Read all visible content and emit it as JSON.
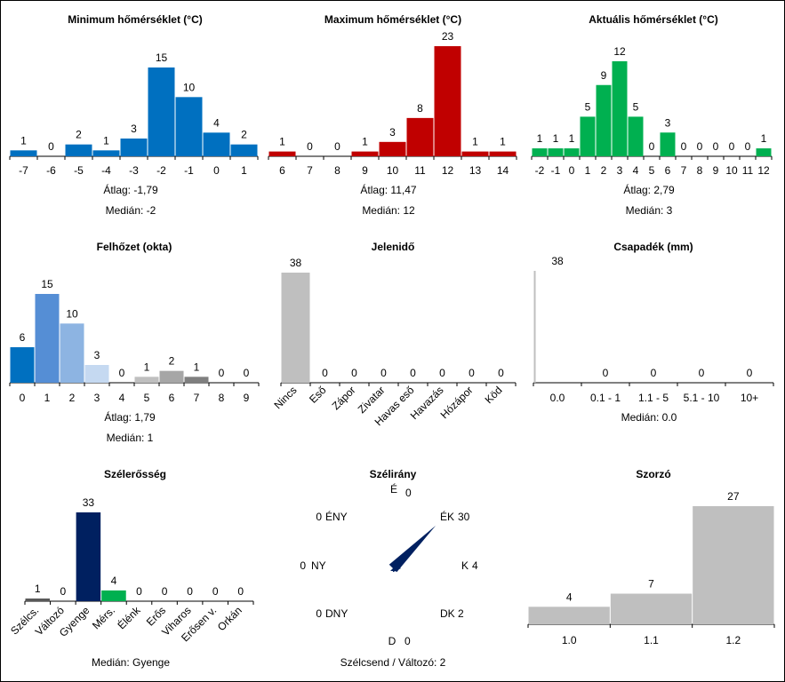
{
  "chart_data": [
    {
      "id": "min-temp",
      "type": "bar",
      "title": "Minimum hőmérséklet (°C)",
      "categories": [
        "-7",
        "-6",
        "-5",
        "-4",
        "-3",
        "-2",
        "-1",
        "0",
        "1"
      ],
      "values": [
        1,
        0,
        2,
        1,
        3,
        15,
        10,
        4,
        2
      ],
      "colors": [
        "#0070C0"
      ],
      "ylim": [
        0,
        15
      ],
      "stats": {
        "mean_label": "Átlag:",
        "mean": "-1,79",
        "median_label": "Medián:",
        "median": "-2"
      }
    },
    {
      "id": "max-temp",
      "type": "bar",
      "title": "Maximum hőmérséklet (°C)",
      "categories": [
        "6",
        "7",
        "8",
        "9",
        "10",
        "11",
        "12",
        "13",
        "14"
      ],
      "values": [
        1,
        0,
        0,
        1,
        3,
        8,
        23,
        1,
        1
      ],
      "colors": [
        "#C00000"
      ],
      "ylim": [
        0,
        23
      ],
      "stats": {
        "mean_label": "Átlag:",
        "mean": "11,47",
        "median_label": "Medián:",
        "median": "12"
      }
    },
    {
      "id": "act-temp",
      "type": "bar",
      "title": "Aktuális hőmérséklet (°C)",
      "categories": [
        "-2",
        "-1",
        "0",
        "1",
        "2",
        "3",
        "4",
        "5",
        "6",
        "7",
        "8",
        "9",
        "10",
        "11",
        "12"
      ],
      "values": [
        1,
        1,
        1,
        5,
        9,
        12,
        5,
        0,
        3,
        0,
        0,
        0,
        0,
        0,
        1
      ],
      "colors": [
        "#00B050"
      ],
      "ylim": [
        0,
        12
      ],
      "stats": {
        "mean_label": "Átlag:",
        "mean": "2,79",
        "median_label": "Medián:",
        "median": "3"
      }
    },
    {
      "id": "cloud",
      "type": "bar",
      "title": "Felhőzet (okta)",
      "categories": [
        "0",
        "1",
        "2",
        "3",
        "4",
        "5",
        "6",
        "7",
        "8",
        "9"
      ],
      "values": [
        6,
        15,
        10,
        3,
        0,
        1,
        2,
        1,
        0,
        0
      ],
      "colors": [
        "#0070C0",
        "#558ED5",
        "#8DB4E2",
        "#C5D9F1",
        "#C5D9F1",
        "#BFBFBF",
        "#A6A6A6",
        "#7F7F7F",
        "#7F7F7F",
        "#7F7F7F"
      ],
      "ylim": [
        0,
        15
      ],
      "stats": {
        "mean_label": "Átlag:",
        "mean": "1,79",
        "median_label": "Medián:",
        "median": "1"
      }
    },
    {
      "id": "weather",
      "type": "bar",
      "title": "Jelenidő",
      "categories": [
        "Nincs",
        "Eső",
        "Zápor",
        "Zivatar",
        "Havas eső",
        "Havazás",
        "Hózápor",
        "Köd"
      ],
      "values": [
        38,
        0,
        0,
        0,
        0,
        0,
        0,
        0
      ],
      "colors": [
        "#BFBFBF"
      ],
      "ylim": [
        0,
        38
      ],
      "rotated_labels": true
    },
    {
      "id": "precip",
      "type": "bar",
      "title": "Csapadék (mm)",
      "categories": [
        "0.0",
        "0.1 - 1",
        "1.1 - 5",
        "5.1 - 10",
        "10+"
      ],
      "values": [
        38,
        0,
        0,
        0,
        0
      ],
      "colors": [
        "#BFBFBF"
      ],
      "ylim": [
        0,
        38
      ],
      "stats": {
        "median_label": "Medián:",
        "median": "0.0"
      }
    },
    {
      "id": "wind-strength",
      "type": "bar",
      "title": "Szélerősség",
      "categories": [
        "Szélcs.",
        "Változó",
        "Gyenge",
        "Mérs.",
        "Élénk",
        "Erős",
        "Viharos",
        "Erősen v.",
        "Orkán"
      ],
      "values": [
        1,
        0,
        33,
        4,
        0,
        0,
        0,
        0,
        0
      ],
      "colors": [
        "#595959",
        "#595959",
        "#002060",
        "#00B050",
        "#00B050",
        "#00B050",
        "#00B050",
        "#00B050",
        "#00B050"
      ],
      "ylim": [
        0,
        33
      ],
      "rotated_labels": true,
      "stats": {
        "median_label": "Medián:",
        "median": "Gyenge"
      }
    },
    {
      "id": "wind-dir",
      "type": "polar",
      "title": "Szélirány",
      "directions": [
        {
          "label": "É",
          "value": 0
        },
        {
          "label": "ÉK",
          "value": 30
        },
        {
          "label": "K",
          "value": 4
        },
        {
          "label": "DK",
          "value": 2
        },
        {
          "label": "D",
          "value": 0
        },
        {
          "label": "DNY",
          "value": 0
        },
        {
          "label": "NY",
          "value": 0
        },
        {
          "label": "ÉNY",
          "value": 0
        }
      ],
      "color": "#002060",
      "footer": "Szélcsend / Változó: 2"
    },
    {
      "id": "factor",
      "type": "bar",
      "title": "Szorzó",
      "categories": [
        "1.0",
        "1.1",
        "1.2"
      ],
      "values": [
        4,
        7,
        27
      ],
      "colors": [
        "#BFBFBF"
      ],
      "ylim": [
        0,
        27
      ]
    }
  ]
}
